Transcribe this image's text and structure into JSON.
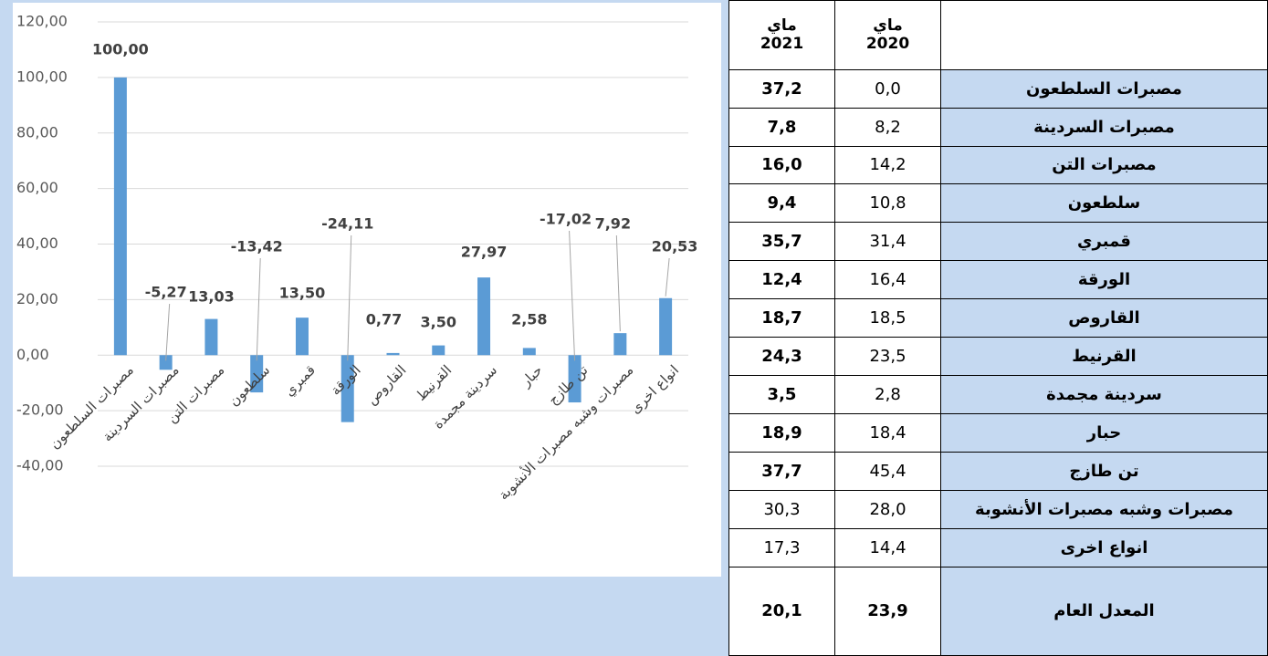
{
  "chart_data": {
    "type": "bar",
    "categories": [
      "مصبرات السلطعون",
      "مصبرات السردينة",
      "مصبرات التن",
      "سلطعون",
      "قمبري",
      "الورقة",
      "القاروص",
      "القرنيط",
      "سردينة مجمدة",
      "حبار",
      "تن طازج",
      "مصبرات وشبه مصبرات الأنشوبة",
      "انواع اخرى"
    ],
    "values": [
      100.0,
      -5.27,
      13.03,
      -13.42,
      13.5,
      -24.11,
      0.77,
      3.5,
      27.97,
      2.58,
      -17.02,
      7.92,
      20.53
    ],
    "value_labels": [
      "100,00",
      "-5,27",
      "13,03",
      "-13,42",
      "13,50",
      "-24,11",
      "0,77",
      "3,50",
      "27,97",
      "2,58",
      "-17,02",
      "7,92",
      "20,53"
    ],
    "color": "#5b9bd5",
    "ylim": [
      -40,
      120
    ],
    "yticks": [
      {
        "value": -40,
        "label": "-40,00"
      },
      {
        "value": -20,
        "label": "-20,00"
      },
      {
        "value": 0,
        "label": "0,00"
      },
      {
        "value": 20,
        "label": "20,00"
      },
      {
        "value": 40,
        "label": "40,00"
      },
      {
        "value": 60,
        "label": "60,00"
      },
      {
        "value": 80,
        "label": "80,00"
      },
      {
        "value": 100,
        "label": "100,00"
      },
      {
        "value": 120,
        "label": "120,00"
      }
    ],
    "grid": true
  },
  "table": {
    "header": [
      {
        "month": "ماي",
        "year": "2021"
      },
      {
        "month": "ماي",
        "year": "2020"
      }
    ],
    "rows": [
      [
        "37,2",
        "0,0",
        "مصبرات السلطعون"
      ],
      [
        "7,8",
        "8,2",
        "مصبرات السردينة"
      ],
      [
        "16,0",
        "14,2",
        "مصبرات التن"
      ],
      [
        "9,4",
        "10,8",
        "سلطعون"
      ],
      [
        "35,7",
        "31,4",
        "قمبري"
      ],
      [
        "12,4",
        "16,4",
        "الورقة"
      ],
      [
        "18,7",
        "18,5",
        "القاروص"
      ],
      [
        "24,3",
        "23,5",
        "القرنيط"
      ],
      [
        "3,5",
        "2,8",
        "سردينة مجمدة"
      ],
      [
        "18,9",
        "18,4",
        "حبار"
      ],
      [
        "37,7",
        "45,4",
        "تن طازج"
      ],
      [
        "30,3",
        "28,0",
        "مصبرات وشبه مصبرات الأنشوبة"
      ],
      [
        "17,3",
        "14,4",
        "انواع اخرى"
      ]
    ],
    "average": [
      "20,1",
      "23,9",
      "المعدل العام"
    ]
  }
}
